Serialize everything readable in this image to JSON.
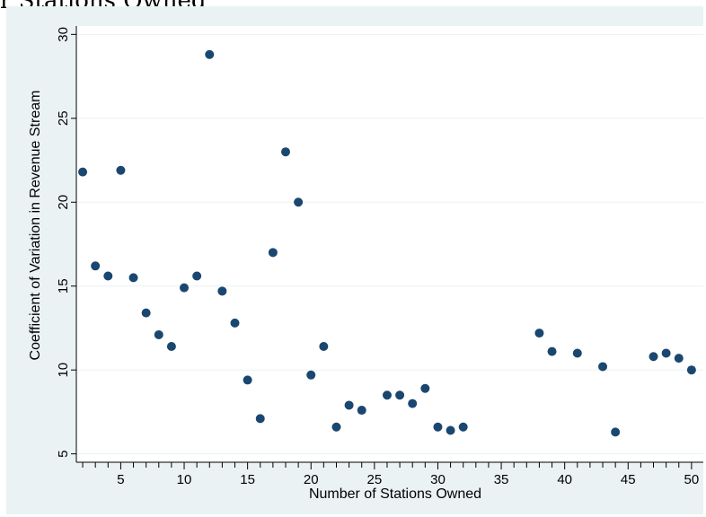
{
  "top_text": "r Stations Owned",
  "chart_data": {
    "type": "scatter",
    "xlabel": "Number of Stations Owned",
    "ylabel": "Coefficient of Variation in Revenue Stream",
    "xlim": [
      1.5,
      51
    ],
    "ylim": [
      4.5,
      30.5
    ],
    "xticks": [
      5,
      10,
      15,
      20,
      25,
      30,
      35,
      40,
      45,
      50
    ],
    "yticks": [
      5,
      10,
      15,
      20,
      25,
      30
    ],
    "grid": true,
    "marker_color": "#1a476f",
    "background_color": "#eaf2f3",
    "points": [
      {
        "x": 2,
        "y": 21.8
      },
      {
        "x": 3,
        "y": 16.2
      },
      {
        "x": 4,
        "y": 15.6
      },
      {
        "x": 5,
        "y": 21.9
      },
      {
        "x": 6,
        "y": 15.5
      },
      {
        "x": 7,
        "y": 13.4
      },
      {
        "x": 8,
        "y": 12.1
      },
      {
        "x": 9,
        "y": 11.4
      },
      {
        "x": 10,
        "y": 14.9
      },
      {
        "x": 11,
        "y": 15.6
      },
      {
        "x": 12,
        "y": 28.8
      },
      {
        "x": 13,
        "y": 14.7
      },
      {
        "x": 14,
        "y": 12.8
      },
      {
        "x": 15,
        "y": 9.4
      },
      {
        "x": 16,
        "y": 7.1
      },
      {
        "x": 17,
        "y": 17.0
      },
      {
        "x": 18,
        "y": 23.0
      },
      {
        "x": 19,
        "y": 20.0
      },
      {
        "x": 20,
        "y": 9.7
      },
      {
        "x": 21,
        "y": 11.4
      },
      {
        "x": 22,
        "y": 6.6
      },
      {
        "x": 23,
        "y": 7.9
      },
      {
        "x": 24,
        "y": 7.6
      },
      {
        "x": 26,
        "y": 8.5
      },
      {
        "x": 27,
        "y": 8.5
      },
      {
        "x": 28,
        "y": 8.0
      },
      {
        "x": 29,
        "y": 8.9
      },
      {
        "x": 30,
        "y": 6.6
      },
      {
        "x": 31,
        "y": 6.4
      },
      {
        "x": 32,
        "y": 6.6
      },
      {
        "x": 38,
        "y": 12.2
      },
      {
        "x": 39,
        "y": 11.1
      },
      {
        "x": 41,
        "y": 11.0
      },
      {
        "x": 43,
        "y": 10.2
      },
      {
        "x": 44,
        "y": 6.3
      },
      {
        "x": 47,
        "y": 10.8
      },
      {
        "x": 48,
        "y": 11.0
      },
      {
        "x": 49,
        "y": 10.7
      },
      {
        "x": 50,
        "y": 10.0
      }
    ]
  }
}
